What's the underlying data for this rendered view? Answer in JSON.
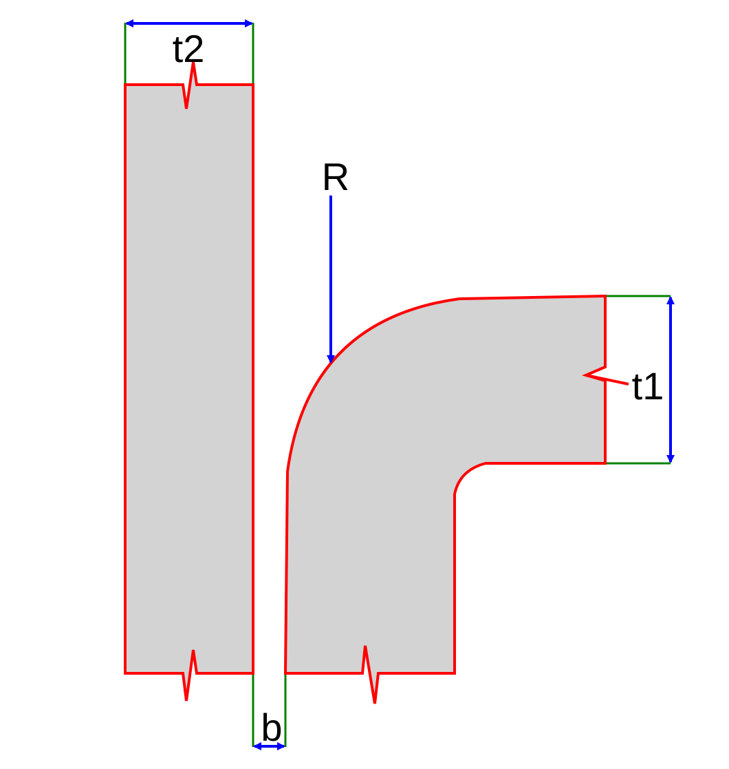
{
  "labels": {
    "t2": "t2",
    "R": "R",
    "t1": "t1",
    "b": "b"
  },
  "colors": {
    "background": "#ffffff",
    "section_fill": "#d3d3d3",
    "section_outline": "#ff0000",
    "dimension_arrow": "#0000ff",
    "extension_line": "#008000",
    "text": "#000000"
  }
}
